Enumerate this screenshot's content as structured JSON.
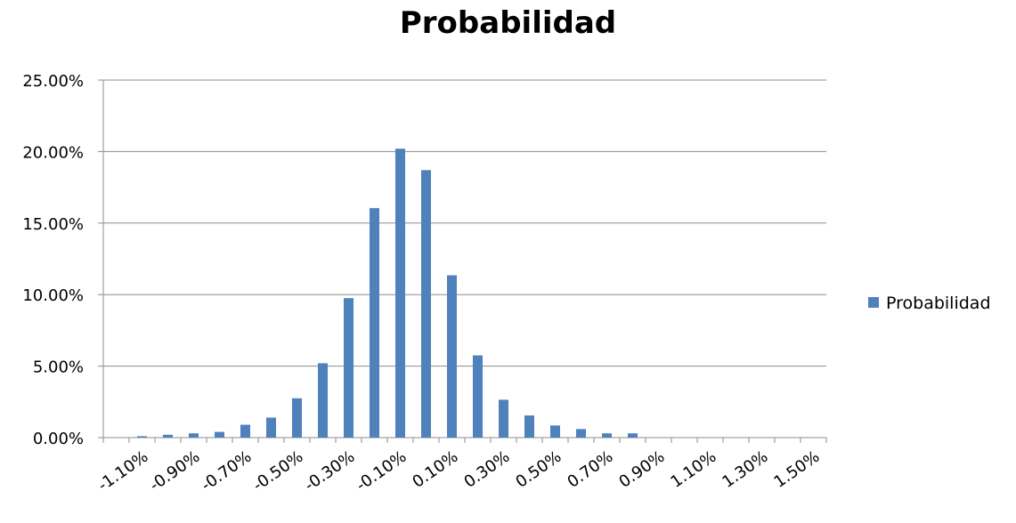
{
  "chart_data": {
    "type": "bar",
    "title": "Probabilidad",
    "xlabel": "",
    "ylabel": "",
    "ylim": [
      0,
      25
    ],
    "y_ticks": [
      "0.00%",
      "5.00%",
      "10.00%",
      "15.00%",
      "20.00%",
      "25.00%"
    ],
    "y_tick_values": [
      0,
      5,
      10,
      15,
      20,
      25
    ],
    "grid": true,
    "legend": "right",
    "categories": [
      "-1.20%",
      "-1.10%",
      "-1.00%",
      "-0.90%",
      "-0.80%",
      "-0.70%",
      "-0.60%",
      "-0.50%",
      "-0.40%",
      "-0.30%",
      "-0.20%",
      "-0.10%",
      "0.00%",
      "0.10%",
      "0.20%",
      "0.30%",
      "0.40%",
      "0.50%",
      "0.60%",
      "0.70%",
      "0.80%",
      "0.90%",
      "1.00%",
      "1.10%",
      "1.20%",
      "1.30%",
      "1.40%",
      "1.50%"
    ],
    "x_tick_labels": [
      "-1.10%",
      "-0.90%",
      "-0.70%",
      "-0.50%",
      "-0.30%",
      "-0.10%",
      "0.10%",
      "0.30%",
      "0.50%",
      "0.70%",
      "0.90%",
      "1.10%",
      "1.30%",
      "1.50%"
    ],
    "series": [
      {
        "name": "Probabilidad",
        "color": "#4F81BD",
        "values": [
          0,
          0.1,
          0.2,
          0.3,
          0.4,
          0.9,
          1.4,
          2.75,
          5.2,
          9.75,
          16.05,
          20.2,
          18.7,
          11.35,
          5.75,
          2.65,
          1.55,
          0.85,
          0.6,
          0.3,
          0.3,
          0,
          0,
          0,
          0,
          0,
          0,
          0
        ]
      }
    ]
  }
}
